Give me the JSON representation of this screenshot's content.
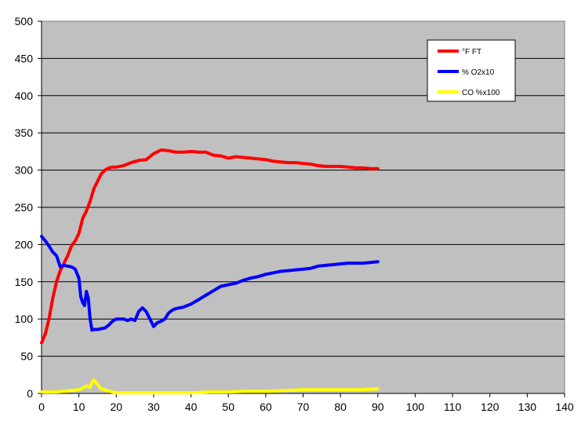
{
  "chart_data": {
    "type": "line",
    "title": "",
    "xlabel": "",
    "ylabel": "",
    "xlim": [
      0,
      140
    ],
    "ylim": [
      0,
      500
    ],
    "x_ticks": [
      0,
      10,
      20,
      30,
      40,
      50,
      60,
      70,
      80,
      90,
      100,
      110,
      120,
      130,
      140
    ],
    "y_ticks": [
      0,
      50,
      100,
      150,
      200,
      250,
      300,
      350,
      400,
      450,
      500
    ],
    "grid": "horizontal",
    "plot_background": "#c0c0c0",
    "legend_placement": "top-right",
    "series": [
      {
        "name": "°F FT",
        "color": "#ff0000",
        "points": [
          [
            0,
            68
          ],
          [
            1,
            80
          ],
          [
            2,
            100
          ],
          [
            3,
            128
          ],
          [
            4,
            150
          ],
          [
            5,
            165
          ],
          [
            6,
            175
          ],
          [
            7,
            185
          ],
          [
            8,
            198
          ],
          [
            9,
            205
          ],
          [
            10,
            215
          ],
          [
            11,
            235
          ],
          [
            12,
            245
          ],
          [
            13,
            258
          ],
          [
            14,
            275
          ],
          [
            15,
            285
          ],
          [
            16,
            295
          ],
          [
            17,
            300
          ],
          [
            18,
            303
          ],
          [
            19,
            304
          ],
          [
            20,
            304
          ],
          [
            22,
            306
          ],
          [
            24,
            310
          ],
          [
            26,
            313
          ],
          [
            28,
            314
          ],
          [
            30,
            322
          ],
          [
            32,
            327
          ],
          [
            34,
            326
          ],
          [
            36,
            324
          ],
          [
            38,
            324
          ],
          [
            40,
            325
          ],
          [
            42,
            324
          ],
          [
            44,
            324
          ],
          [
            46,
            320
          ],
          [
            48,
            319
          ],
          [
            50,
            316
          ],
          [
            52,
            318
          ],
          [
            54,
            317
          ],
          [
            56,
            316
          ],
          [
            58,
            315
          ],
          [
            60,
            314
          ],
          [
            62,
            312
          ],
          [
            64,
            311
          ],
          [
            66,
            310
          ],
          [
            68,
            310
          ],
          [
            70,
            309
          ],
          [
            72,
            308
          ],
          [
            74,
            306
          ],
          [
            76,
            305
          ],
          [
            78,
            305
          ],
          [
            80,
            305
          ],
          [
            82,
            304
          ],
          [
            84,
            303
          ],
          [
            86,
            303
          ],
          [
            88,
            302
          ],
          [
            90,
            302
          ]
        ]
      },
      {
        "name": "% O2x10",
        "color": "#0000ff",
        "points": [
          [
            0,
            211
          ],
          [
            1,
            205
          ],
          [
            2,
            198
          ],
          [
            3,
            190
          ],
          [
            4,
            185
          ],
          [
            5,
            170
          ],
          [
            6,
            172
          ],
          [
            7,
            171
          ],
          [
            8,
            170
          ],
          [
            9,
            167
          ],
          [
            10,
            155
          ],
          [
            10.5,
            130
          ],
          [
            11,
            122
          ],
          [
            11.5,
            118
          ],
          [
            12,
            137
          ],
          [
            12.5,
            128
          ],
          [
            13,
            100
          ],
          [
            13.5,
            85
          ],
          [
            14,
            86
          ],
          [
            15,
            86
          ],
          [
            16,
            87
          ],
          [
            17,
            88
          ],
          [
            18,
            92
          ],
          [
            19,
            97
          ],
          [
            20,
            100
          ],
          [
            21,
            100
          ],
          [
            22,
            100
          ],
          [
            23,
            98
          ],
          [
            24,
            100
          ],
          [
            25,
            98
          ],
          [
            26,
            110
          ],
          [
            27,
            115
          ],
          [
            28,
            110
          ],
          [
            29,
            100
          ],
          [
            30,
            90
          ],
          [
            31,
            95
          ],
          [
            32,
            97
          ],
          [
            33,
            100
          ],
          [
            34,
            108
          ],
          [
            35,
            112
          ],
          [
            36,
            114
          ],
          [
            38,
            116
          ],
          [
            40,
            120
          ],
          [
            42,
            126
          ],
          [
            44,
            132
          ],
          [
            46,
            138
          ],
          [
            48,
            144
          ],
          [
            50,
            146
          ],
          [
            52,
            148
          ],
          [
            54,
            152
          ],
          [
            56,
            155
          ],
          [
            58,
            157
          ],
          [
            60,
            160
          ],
          [
            62,
            162
          ],
          [
            64,
            164
          ],
          [
            66,
            165
          ],
          [
            68,
            166
          ],
          [
            70,
            167
          ],
          [
            72,
            168
          ],
          [
            74,
            171
          ],
          [
            76,
            172
          ],
          [
            78,
            173
          ],
          [
            80,
            174
          ],
          [
            82,
            175
          ],
          [
            84,
            175
          ],
          [
            86,
            175
          ],
          [
            88,
            176
          ],
          [
            90,
            177
          ]
        ]
      },
      {
        "name": "CO %x100",
        "color": "#ffff00",
        "points": [
          [
            0,
            2
          ],
          [
            2,
            2
          ],
          [
            4,
            2
          ],
          [
            6,
            3
          ],
          [
            8,
            4
          ],
          [
            10,
            5
          ],
          [
            11,
            7
          ],
          [
            12,
            10
          ],
          [
            13,
            8
          ],
          [
            13.5,
            15
          ],
          [
            14,
            18
          ],
          [
            15,
            12
          ],
          [
            16,
            6
          ],
          [
            17,
            5
          ],
          [
            18,
            3
          ],
          [
            19,
            2
          ],
          [
            20,
            1
          ],
          [
            25,
            1
          ],
          [
            30,
            1
          ],
          [
            35,
            1
          ],
          [
            40,
            1
          ],
          [
            45,
            2
          ],
          [
            50,
            2
          ],
          [
            55,
            3
          ],
          [
            60,
            3
          ],
          [
            65,
            4
          ],
          [
            70,
            5
          ],
          [
            75,
            5
          ],
          [
            80,
            5
          ],
          [
            85,
            5
          ],
          [
            90,
            6
          ]
        ]
      }
    ]
  }
}
